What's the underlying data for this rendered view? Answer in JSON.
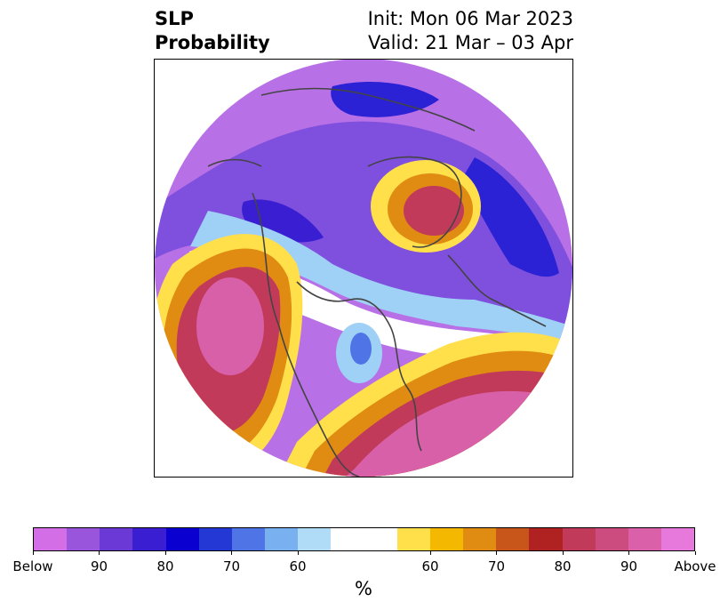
{
  "title": {
    "left_line1": "SLP",
    "left_line2": "Probability",
    "right_line1": "Init: Mon 06 Mar 2023",
    "right_line2": "Valid: 21 Mar – 03 Apr"
  },
  "colorbar": {
    "unit_label": "%",
    "colors": [
      "#d46ee6",
      "#9a55dd",
      "#6b3ad6",
      "#3a1fd2",
      "#0a00cf",
      "#2438d6",
      "#4e74e6",
      "#78b0f0",
      "#b0dcf8",
      "#ffffff",
      "#ffffff",
      "#ffe04a",
      "#f5b800",
      "#e08c12",
      "#c8561a",
      "#b02222",
      "#c23a5a",
      "#cc4c80",
      "#db60aa",
      "#e778dc"
    ],
    "ticks": [
      {
        "label": "Below"
      },
      {
        "label": "90"
      },
      {
        "label": "80"
      },
      {
        "label": "70"
      },
      {
        "label": "60"
      },
      {
        "label": "60"
      },
      {
        "label": "70"
      },
      {
        "label": "80"
      },
      {
        "label": "90"
      },
      {
        "label": "Above"
      }
    ]
  },
  "map": {
    "projection": "north-polar-stereographic",
    "field": "SLP probability",
    "colors": {
      "below_high": "#b870e6",
      "below_mid": "#7f4fde",
      "below_strong": "#2a22d4",
      "below_light": "#9fd0f6",
      "neutral": "#ffffff",
      "above_light": "#ffe04a",
      "above_mid": "#e08c12",
      "above_strong": "#c23a5a",
      "above_high": "#d860a8",
      "coastline": "#444444"
    }
  }
}
